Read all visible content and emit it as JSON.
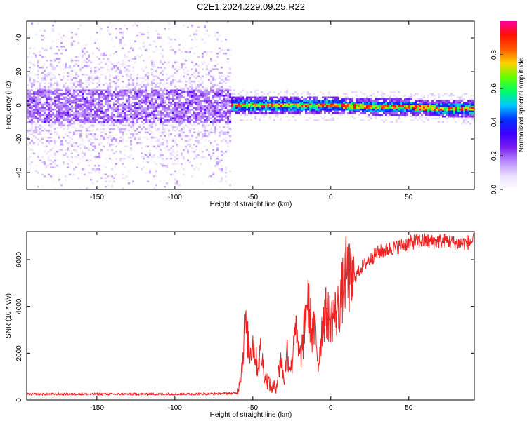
{
  "title": "C2E1.2024.229.09.25.R22",
  "chart_data": [
    {
      "type": "heatmap",
      "xlabel": "Height of straight line (km)",
      "ylabel": "Frequency (Hz)",
      "xlim": [
        -195,
        92
      ],
      "ylim": [
        -50,
        50
      ],
      "x_ticks": [
        -150,
        -100,
        -50,
        0,
        50
      ],
      "y_ticks": [
        -40,
        -20,
        0,
        20,
        40
      ],
      "colorbar": {
        "label": "Normalized spectral amplitude",
        "range": [
          0,
          1
        ],
        "ticks": [
          0.0,
          0.2,
          0.4,
          0.6,
          0.8
        ],
        "tick_labels": [
          "0.0",
          "0.2",
          "0.4",
          "0.6",
          "0.8"
        ],
        "colormap": [
          "#ffffff",
          "#e9dcff",
          "#b98cff",
          "#7a1cf0",
          "#3a00ff",
          "#0033ff",
          "#00c8ff",
          "#00ff66",
          "#66ff00",
          "#ffd000",
          "#ff5a00",
          "#ff1000",
          "#ff00a0"
        ]
      },
      "features": {
        "noise_region_x": [
          -195,
          -65
        ],
        "noise_spread_hz": 50,
        "noise_core_hz": 10,
        "signal_region_x": [
          -65,
          92
        ],
        "signal_center_hz": [
          [
            -65,
            0.5
          ],
          [
            0,
            0.3
          ],
          [
            50,
            -0.8
          ],
          [
            92,
            -1.8
          ]
        ],
        "signal_peak_amplitude": 0.95
      },
      "grid": false
    },
    {
      "type": "line",
      "xlabel": "Height of straight line (km)",
      "ylabel": "SNR (10 * v/v)",
      "xlim": [
        -195,
        92
      ],
      "ylim": [
        0,
        7200
      ],
      "x_ticks": [
        -150,
        -100,
        -50,
        0,
        50
      ],
      "y_ticks": [
        0,
        2000,
        4000,
        6000
      ],
      "color": "#ee2222",
      "series": [
        {
          "x": [
            -195,
            -150,
            -100,
            -70,
            -60,
            -57,
            -55,
            -52,
            -50,
            -47,
            -45,
            -42,
            -40,
            -38,
            -35,
            -32,
            -30,
            -28,
            -27,
            -25,
            -23,
            -22,
            -20,
            -18,
            -15,
            -12,
            -10,
            -8,
            -5,
            -3,
            0,
            3,
            5,
            8,
            10,
            13,
            15,
            18,
            20,
            25,
            30,
            35,
            40,
            45,
            50,
            55,
            60,
            65,
            70,
            75,
            80,
            85,
            92
          ],
          "values": [
            250,
            250,
            250,
            270,
            300,
            1400,
            3300,
            2000,
            2500,
            1400,
            2100,
            900,
            800,
            500,
            600,
            1800,
            800,
            2200,
            1700,
            1400,
            3600,
            2600,
            1800,
            2300,
            4400,
            2800,
            3000,
            1500,
            3500,
            3700,
            3500,
            3700,
            3900,
            4800,
            5500,
            5000,
            5200,
            5500,
            5700,
            6000,
            6300,
            6400,
            6500,
            6600,
            6700,
            6800,
            6800,
            6750,
            6800,
            6800,
            6700,
            6700,
            6800
          ]
        }
      ]
    }
  ]
}
